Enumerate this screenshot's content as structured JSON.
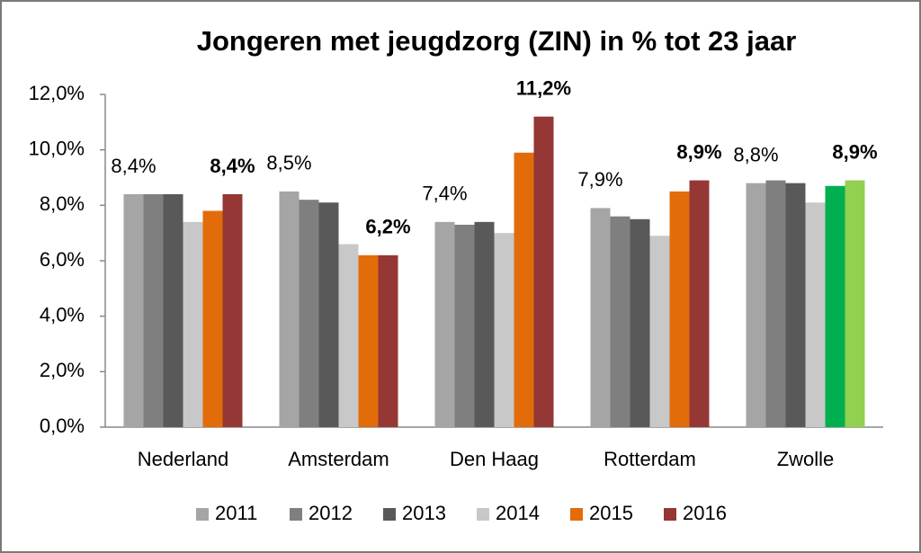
{
  "chart_data": {
    "type": "bar",
    "title": "Jongeren met jeugdzorg (ZIN) in % tot 23 jaar",
    "categories": [
      "Nederland",
      "Amsterdam",
      "Den Haag",
      "Rotterdam",
      "Zwolle"
    ],
    "series": [
      {
        "name": "2011",
        "color": "#a5a5a5",
        "values": [
          8.4,
          8.5,
          7.4,
          7.9,
          8.8
        ],
        "value_labels": [
          "8,4%",
          "8,5%",
          "7,4%",
          "7,9%",
          "8,8%"
        ]
      },
      {
        "name": "2012",
        "color": "#7f7f7f",
        "values": [
          8.4,
          8.2,
          7.3,
          7.6,
          8.9
        ]
      },
      {
        "name": "2013",
        "color": "#595959",
        "values": [
          8.4,
          8.1,
          7.4,
          7.5,
          8.8
        ]
      },
      {
        "name": "2014",
        "color": "#c8c8c8",
        "values": [
          7.4,
          6.6,
          7.0,
          6.9,
          8.1
        ]
      },
      {
        "name": "2015",
        "color": "#e36c0a",
        "colors": [
          "#e36c0a",
          "#e36c0a",
          "#e36c0a",
          "#e36c0a",
          "#00b050"
        ],
        "values": [
          7.8,
          6.2,
          9.9,
          8.5,
          8.7
        ]
      },
      {
        "name": "2016",
        "color": "#953735",
        "colors": [
          "#953735",
          "#953735",
          "#953735",
          "#953735",
          "#92d050"
        ],
        "values": [
          8.4,
          6.2,
          11.2,
          8.9,
          8.9
        ],
        "value_labels": [
          "8,4%",
          "6,2%",
          "11,2%",
          "8,9%",
          "8,9%"
        ]
      }
    ],
    "ylim": [
      0,
      12
    ],
    "yticks": [
      {
        "value": 0,
        "label": "0,0%"
      },
      {
        "value": 2,
        "label": "2,0%"
      },
      {
        "value": 4,
        "label": "4,0%"
      },
      {
        "value": 6,
        "label": "6,0%"
      },
      {
        "value": 8,
        "label": "8,0%"
      },
      {
        "value": 10,
        "label": "10,0%"
      },
      {
        "value": 12,
        "label": "12,0%"
      }
    ],
    "grid": false,
    "legend": "bottom"
  }
}
